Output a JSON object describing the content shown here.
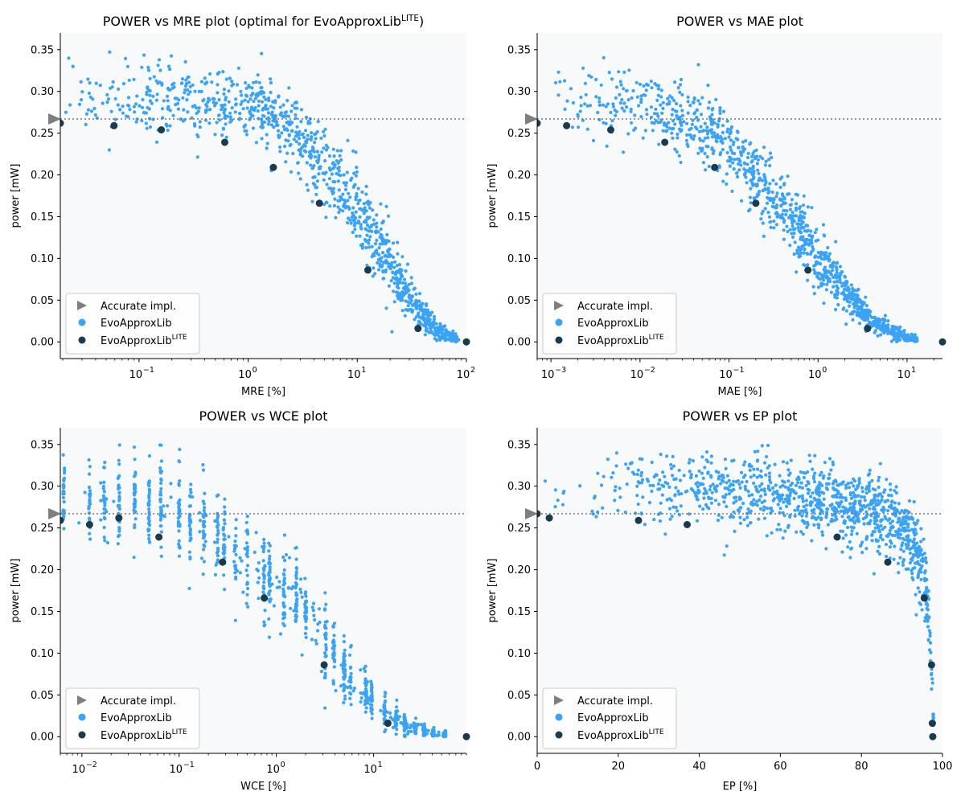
{
  "colors": {
    "background": "#f8f9fb",
    "evo": "#3ba3f5",
    "lite": "#1b3a4b",
    "accurate": "#7f7f7f",
    "refline": "#777777"
  },
  "legend": {
    "accurate": "Accurate impl.",
    "evo": "EvoApproxLib",
    "lite_base": "EvoApproxLib",
    "lite_sup": "LITE"
  },
  "chart_data": [
    {
      "id": "mre",
      "type": "scatter",
      "title": "POWER vs MRE plot (optimal for EvoApproxLib",
      "title_sup": "LITE",
      "title_end": ")",
      "xlabel": "MRE [%]",
      "ylabel": "power [mW]",
      "xscale": "log",
      "xlim": [
        0.019,
        100
      ],
      "ylim": [
        -0.02,
        0.37
      ],
      "xticks": [
        {
          "v": 0.1,
          "base": "10",
          "exp": "−1"
        },
        {
          "v": 1,
          "base": "10",
          "exp": "0"
        },
        {
          "v": 10,
          "base": "10",
          "exp": "1"
        },
        {
          "v": 100,
          "base": "10",
          "exp": "2"
        }
      ],
      "yticks": [
        0.0,
        0.05,
        0.1,
        0.15,
        0.2,
        0.25,
        0.3,
        0.35
      ],
      "ytick_labels": [
        "0.00",
        "0.05",
        "0.10",
        "0.15",
        "0.20",
        "0.25",
        "0.30",
        "0.35"
      ],
      "accurate_power": 0.267,
      "lite": [
        [
          0.019,
          0.262
        ],
        [
          0.059,
          0.259
        ],
        [
          0.16,
          0.254
        ],
        [
          0.61,
          0.239
        ],
        [
          1.7,
          0.209
        ],
        [
          4.5,
          0.166
        ],
        [
          12.5,
          0.086
        ],
        [
          36,
          0.016
        ],
        [
          100,
          0.0
        ]
      ],
      "evo_trend": [
        [
          0.02,
          0.292
        ],
        [
          0.3,
          0.288
        ],
        [
          1.0,
          0.283
        ],
        [
          2.0,
          0.268
        ],
        [
          4.0,
          0.225
        ],
        [
          8.0,
          0.18
        ],
        [
          15,
          0.12
        ],
        [
          25,
          0.07
        ],
        [
          40,
          0.03
        ],
        [
          60,
          0.01
        ],
        [
          85,
          0.002
        ]
      ],
      "evo_spread": 0.022
    },
    {
      "id": "mae",
      "type": "scatter",
      "title": "POWER vs MAE plot",
      "xlabel": "MAE [%]",
      "ylabel": "power [mW]",
      "xscale": "log",
      "xlim": [
        0.0007,
        25
      ],
      "ylim": [
        -0.02,
        0.37
      ],
      "xticks": [
        {
          "v": 0.001,
          "base": "10",
          "exp": "−3"
        },
        {
          "v": 0.01,
          "base": "10",
          "exp": "−2"
        },
        {
          "v": 0.1,
          "base": "10",
          "exp": "−1"
        },
        {
          "v": 1,
          "base": "10",
          "exp": "0"
        },
        {
          "v": 10,
          "base": "10",
          "exp": "1"
        }
      ],
      "yticks": [
        0.0,
        0.05,
        0.1,
        0.15,
        0.2,
        0.25,
        0.3,
        0.35
      ],
      "ytick_labels": [
        "0.00",
        "0.05",
        "0.10",
        "0.15",
        "0.20",
        "0.25",
        "0.30",
        "0.35"
      ],
      "accurate_power": 0.267,
      "lite": [
        [
          0.0007,
          0.262
        ],
        [
          0.0015,
          0.259
        ],
        [
          0.0047,
          0.254
        ],
        [
          0.019,
          0.239
        ],
        [
          0.069,
          0.209
        ],
        [
          0.2,
          0.166
        ],
        [
          0.77,
          0.086
        ],
        [
          3.6,
          0.016
        ],
        [
          25,
          0.0
        ]
      ],
      "evo_trend": [
        [
          0.0009,
          0.29
        ],
        [
          0.01,
          0.285
        ],
        [
          0.05,
          0.26
        ],
        [
          0.1,
          0.235
        ],
        [
          0.2,
          0.195
        ],
        [
          0.5,
          0.15
        ],
        [
          1.0,
          0.1
        ],
        [
          2.0,
          0.06
        ],
        [
          4.0,
          0.025
        ],
        [
          8.0,
          0.008
        ],
        [
          13,
          0.002
        ]
      ],
      "evo_spread": 0.022
    },
    {
      "id": "wce",
      "type": "scatter",
      "title": "POWER vs WCE plot",
      "xlabel": "WCE [%]",
      "ylabel": "power [mW]",
      "xscale": "log",
      "xlim": [
        0.006,
        90
      ],
      "ylim": [
        -0.02,
        0.37
      ],
      "xticks": [
        {
          "v": 0.01,
          "base": "10",
          "exp": "−2"
        },
        {
          "v": 0.1,
          "base": "10",
          "exp": "−1"
        },
        {
          "v": 1,
          "base": "10",
          "exp": "0"
        },
        {
          "v": 10,
          "base": "10",
          "exp": "1"
        }
      ],
      "yticks": [
        0.0,
        0.05,
        0.1,
        0.15,
        0.2,
        0.25,
        0.3,
        0.35
      ],
      "ytick_labels": [
        "0.00",
        "0.05",
        "0.10",
        "0.15",
        "0.20",
        "0.25",
        "0.30",
        "0.35"
      ],
      "accurate_power": 0.267,
      "lite": [
        [
          0.006,
          0.259
        ],
        [
          0.012,
          0.254
        ],
        [
          0.024,
          0.262
        ],
        [
          0.062,
          0.239
        ],
        [
          0.28,
          0.209
        ],
        [
          0.75,
          0.166
        ],
        [
          3.1,
          0.086
        ],
        [
          14,
          0.016
        ],
        [
          90,
          0.0
        ]
      ],
      "evo_columns": [
        0.0065,
        0.012,
        0.017,
        0.024,
        0.035,
        0.049,
        0.065,
        0.1,
        0.13,
        0.18,
        0.25,
        0.29,
        0.38,
        0.5,
        0.75,
        0.85,
        1.2,
        1.6,
        2.0,
        3.2,
        3.9,
        5.0,
        5.8,
        8.3,
        9.5,
        13,
        17,
        21,
        27,
        33,
        41,
        54
      ],
      "evo_trend": [
        [
          0.006,
          0.29
        ],
        [
          0.05,
          0.285
        ],
        [
          0.1,
          0.27
        ],
        [
          0.2,
          0.25
        ],
        [
          0.4,
          0.215
        ],
        [
          0.8,
          0.185
        ],
        [
          1.5,
          0.17
        ],
        [
          2.0,
          0.15
        ],
        [
          3.5,
          0.1
        ],
        [
          6,
          0.07
        ],
        [
          10,
          0.04
        ],
        [
          20,
          0.015
        ],
        [
          40,
          0.004
        ],
        [
          55,
          0.001
        ]
      ],
      "evo_spread": 0.025
    },
    {
      "id": "ep",
      "type": "scatter",
      "title": "POWER vs EP plot",
      "xlabel": "EP [%]",
      "ylabel": "power [mW]",
      "xscale": "linear",
      "xlim": [
        0,
        100
      ],
      "ylim": [
        -0.02,
        0.37
      ],
      "xticks": [
        {
          "v": 0,
          "label": "0"
        },
        {
          "v": 20,
          "label": "20"
        },
        {
          "v": 40,
          "label": "40"
        },
        {
          "v": 60,
          "label": "60"
        },
        {
          "v": 80,
          "label": "80"
        },
        {
          "v": 100,
          "label": "100"
        }
      ],
      "yticks": [
        0.0,
        0.05,
        0.1,
        0.15,
        0.2,
        0.25,
        0.3,
        0.35
      ],
      "ytick_labels": [
        "0.00",
        "0.05",
        "0.10",
        "0.15",
        "0.20",
        "0.25",
        "0.30",
        "0.35"
      ],
      "accurate_power": 0.267,
      "lite": [
        [
          0,
          0.267
        ],
        [
          3,
          0.262
        ],
        [
          25,
          0.259
        ],
        [
          37,
          0.254
        ],
        [
          74,
          0.239
        ],
        [
          86.5,
          0.209
        ],
        [
          95.5,
          0.166
        ],
        [
          97.3,
          0.086
        ],
        [
          97.5,
          0.016
        ],
        [
          97.6,
          0.0
        ]
      ],
      "evo_trend": [
        [
          0,
          0.295
        ],
        [
          40,
          0.295
        ],
        [
          70,
          0.285
        ],
        [
          85,
          0.265
        ],
        [
          92,
          0.235
        ],
        [
          95,
          0.2
        ],
        [
          96.5,
          0.15
        ],
        [
          97.2,
          0.1
        ],
        [
          97.6,
          0.05
        ],
        [
          97.8,
          0.01
        ]
      ],
      "evo_spread": 0.022
    }
  ]
}
